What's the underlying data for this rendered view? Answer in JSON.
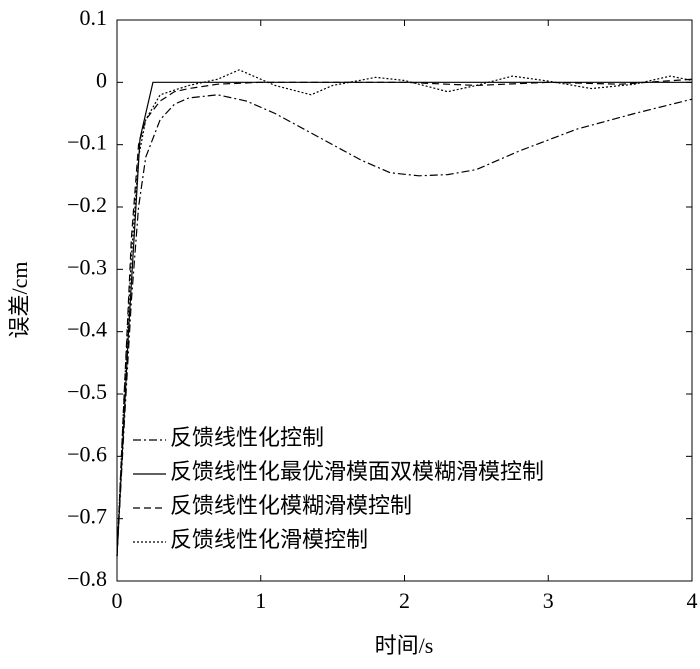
{
  "chart_data": {
    "type": "line",
    "xlabel": "时间/s",
    "ylabel": "误差/cm",
    "xlim": [
      0,
      4
    ],
    "ylim": [
      -0.8,
      0.1
    ],
    "xticks": [
      0,
      1,
      2,
      3,
      4
    ],
    "yticks": [
      {
        "value": 0.1,
        "label": "0.1"
      },
      0,
      {
        "value": -0.1,
        "label": "−0.1"
      },
      {
        "value": -0.2,
        "label": "−0.2"
      },
      {
        "value": -0.3,
        "label": "−0.3"
      },
      {
        "value": -0.4,
        "label": "−0.4"
      },
      {
        "value": -0.5,
        "label": "−0.5"
      },
      {
        "value": -0.6,
        "label": "−0.6"
      },
      {
        "value": -0.7,
        "label": "−0.7"
      },
      {
        "value": -0.8,
        "label": "−0.8"
      }
    ],
    "legend": "lower left",
    "series": [
      {
        "name": "反馈线性化控制",
        "color": "#000000",
        "dash": "dashdot",
        "x": [
          0,
          0.05,
          0.1,
          0.15,
          0.2,
          0.3,
          0.4,
          0.5,
          0.7,
          0.9,
          1.1,
          1.3,
          1.5,
          1.7,
          1.9,
          2.1,
          2.3,
          2.5,
          2.8,
          3.2,
          3.6,
          4
        ],
        "values": [
          -0.76,
          -0.55,
          -0.35,
          -0.2,
          -0.12,
          -0.06,
          -0.035,
          -0.025,
          -0.02,
          -0.03,
          -0.05,
          -0.075,
          -0.1,
          -0.125,
          -0.145,
          -0.15,
          -0.148,
          -0.14,
          -0.11,
          -0.075,
          -0.05,
          -0.027
        ]
      },
      {
        "name": "反馈线性化最优滑模面双模糊滑模控制",
        "color": "#000000",
        "dash": "solid",
        "x": [
          0,
          0.08,
          0.16,
          0.25,
          1,
          2,
          3,
          4
        ],
        "values": [
          -0.76,
          -0.4,
          -0.09,
          0,
          0,
          0,
          0,
          0
        ]
      },
      {
        "name": "反馈线性化模糊滑模控制",
        "color": "#000000",
        "dash": "dashed",
        "x": [
          0,
          0.05,
          0.1,
          0.15,
          0.2,
          0.3,
          0.4,
          0.5,
          0.7,
          1,
          1.5,
          2,
          2.5,
          3,
          3.5,
          4
        ],
        "values": [
          -0.76,
          -0.5,
          -0.25,
          -0.1,
          -0.06,
          -0.03,
          -0.015,
          -0.01,
          -0.003,
          0,
          0,
          0,
          -0.005,
          0,
          -0.003,
          0.005
        ]
      },
      {
        "name": "反馈线性化滑模控制",
        "color": "#000000",
        "dash": "dotted",
        "x": [
          0,
          0.05,
          0.1,
          0.15,
          0.2,
          0.3,
          0.5,
          0.7,
          0.85,
          1,
          1.1,
          1.35,
          1.5,
          1.8,
          2,
          2.3,
          2.5,
          2.75,
          3,
          3.3,
          3.6,
          3.85,
          4
        ],
        "values": [
          -0.76,
          -0.5,
          -0.28,
          -0.12,
          -0.06,
          -0.02,
          -0.005,
          0.005,
          0.02,
          0.005,
          -0.005,
          -0.02,
          -0.005,
          0.008,
          0.003,
          -0.015,
          -0.005,
          0.01,
          0.002,
          -0.01,
          -0.003,
          0.01,
          0.003
        ]
      }
    ]
  }
}
